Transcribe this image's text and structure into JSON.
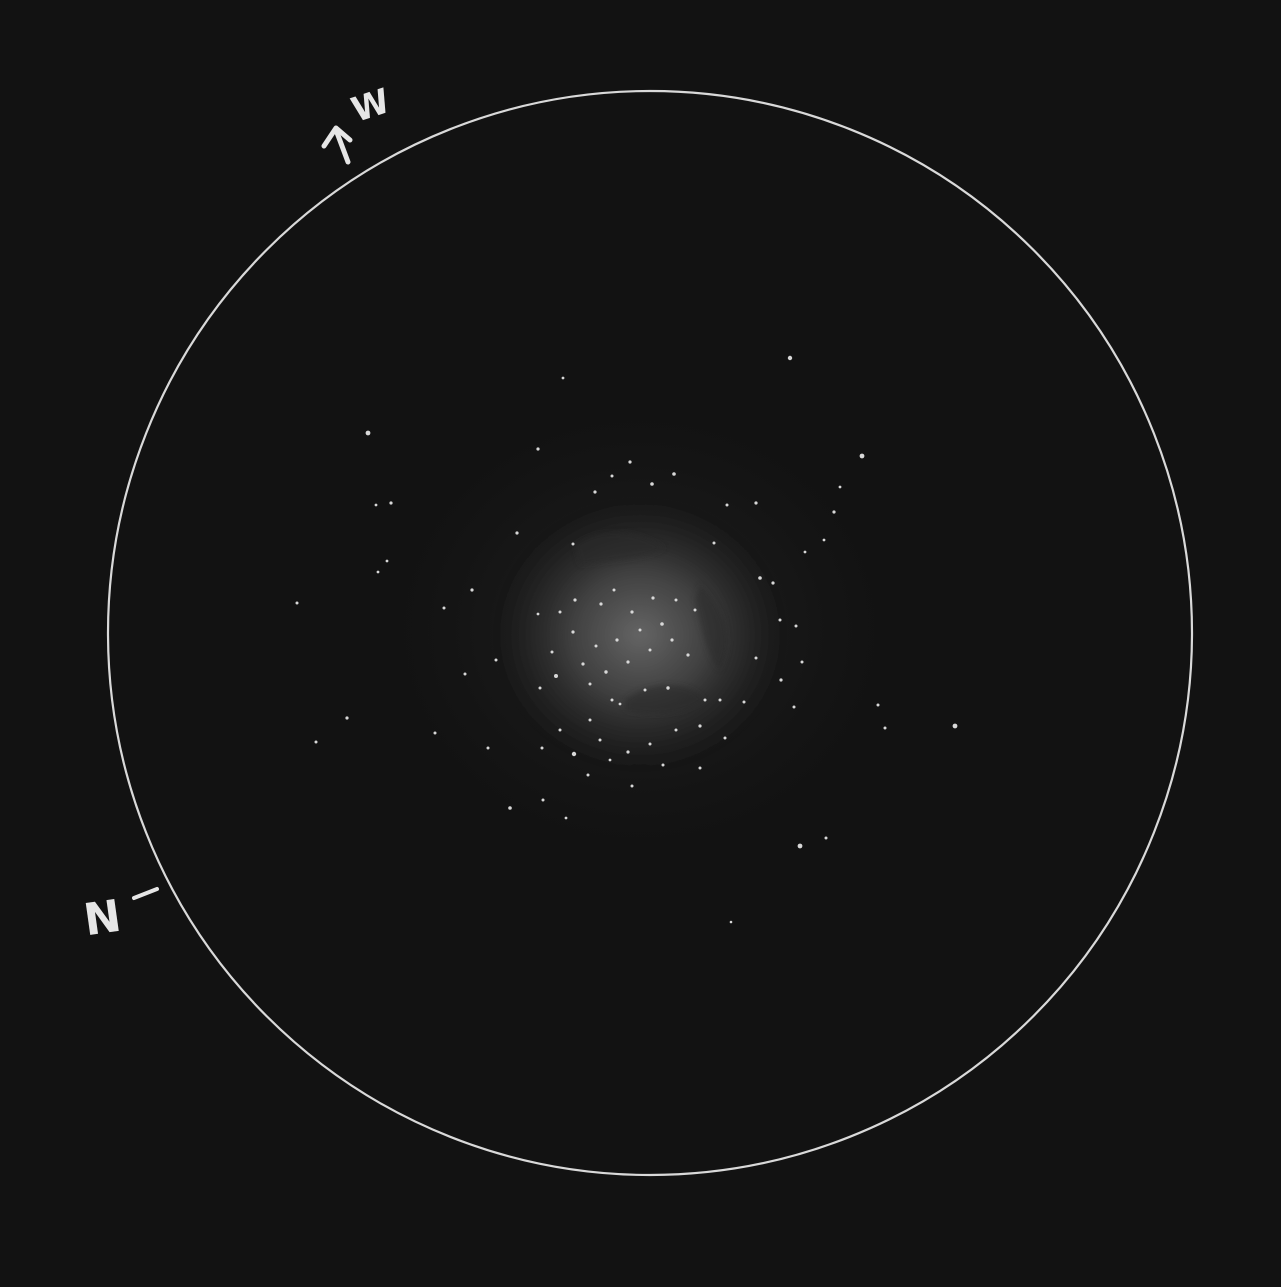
{
  "sketch": {
    "colors": {
      "background": "#121212",
      "field_circle": "#d9d9d9",
      "stars": "#d8d8d8",
      "nebula_glow": "#8a8a8a",
      "labels": "#e6e6e6"
    },
    "direction_labels": {
      "west": "W",
      "north": "N"
    },
    "icons": {
      "west_marker": "arrow-up-icon",
      "north_marker": "tick-mark-icon"
    }
  }
}
